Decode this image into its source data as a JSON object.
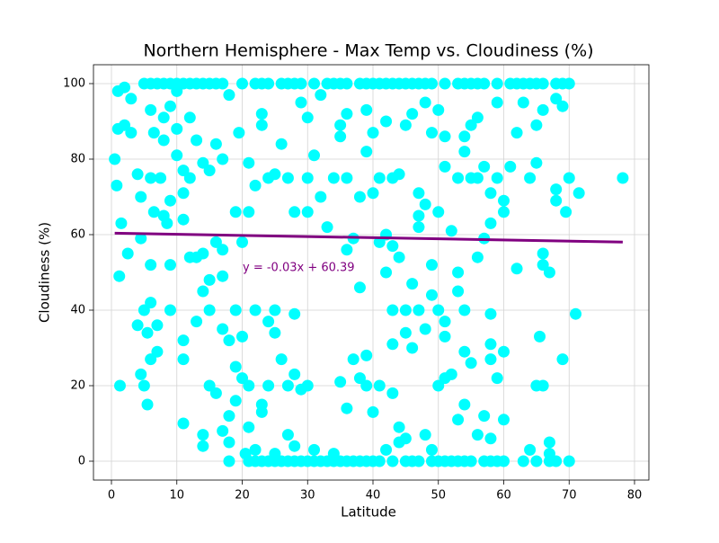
{
  "chart_data": {
    "type": "scatter",
    "title": "Northern Hemisphere - Max Temp vs. Cloudiness (%)",
    "xlabel": "Latitude",
    "ylabel": "Cloudiness (%)",
    "color": "#00ffff",
    "grid": true,
    "xlim": [
      -2.75,
      82.2
    ],
    "ylim": [
      -5,
      105
    ],
    "xticks": [
      0,
      10,
      20,
      30,
      40,
      50,
      60,
      70,
      80
    ],
    "yticks": [
      0,
      20,
      40,
      60,
      80,
      100
    ],
    "x": [
      5,
      6,
      7,
      8,
      9,
      10,
      11,
      12,
      13,
      14,
      15,
      16,
      17,
      20,
      22,
      23,
      24,
      26,
      27,
      28,
      29,
      31,
      33,
      34,
      35,
      36,
      38,
      39,
      40,
      41,
      42,
      43,
      44,
      45,
      46,
      47,
      48,
      49,
      51,
      53,
      54,
      55,
      56,
      57,
      59,
      61,
      62,
      63,
      64,
      65,
      66,
      68,
      69,
      70,
      21,
      22,
      23,
      24,
      25,
      26,
      27,
      28,
      29,
      30,
      31,
      32,
      33,
      34,
      35,
      36,
      37,
      38,
      39,
      40,
      41,
      43,
      45,
      46,
      47,
      49,
      50,
      51,
      52,
      53,
      54,
      55,
      57,
      58,
      59,
      60,
      63,
      65,
      67,
      68,
      70,
      0.5,
      0.8,
      1,
      1,
      1.2,
      1.5,
      1.3,
      2,
      2,
      2.5,
      3,
      3,
      4,
      4,
      4.5,
      4.5,
      4.5,
      5,
      5,
      5.5,
      5.5,
      6,
      6,
      6,
      6,
      6,
      6.5,
      6.5,
      7,
      7,
      7.5,
      8,
      8,
      8,
      8.5,
      9,
      9,
      9,
      9,
      10,
      10,
      10,
      11,
      11,
      11,
      11,
      11,
      11,
      12,
      12,
      12,
      13,
      13,
      13,
      14,
      14,
      14,
      14,
      14,
      15,
      15,
      15,
      15,
      16,
      16,
      16,
      17,
      17,
      17,
      17,
      17,
      18,
      18,
      18,
      18,
      18,
      19,
      19,
      19,
      19,
      19.5,
      20,
      20,
      20,
      20.5,
      21,
      21,
      21,
      21,
      22,
      22,
      22,
      23,
      23,
      23,
      23,
      24,
      24,
      24,
      25,
      25,
      25,
      25,
      26,
      26,
      27,
      27,
      27,
      28,
      28,
      28,
      28,
      29,
      29,
      30,
      30,
      30,
      30,
      31,
      31,
      32,
      32,
      33,
      34,
      34,
      35,
      35,
      35,
      36,
      36,
      36,
      36,
      37,
      37,
      38,
      38,
      38,
      39,
      39,
      39,
      39,
      40,
      40,
      40,
      41,
      41,
      41,
      42,
      42,
      42,
      42,
      43,
      43,
      43,
      43,
      43,
      44,
      44,
      44,
      44,
      45,
      45,
      45,
      45,
      46,
      46,
      46,
      47,
      47,
      47,
      47,
      48,
      48,
      48,
      48,
      49,
      49,
      49,
      49,
      50,
      50,
      50,
      50,
      51,
      51,
      51,
      51,
      51,
      52,
      52,
      53,
      53,
      53,
      53,
      54,
      54,
      54,
      54,
      54,
      55,
      55,
      55,
      56,
      56,
      56,
      56,
      57,
      57,
      57,
      58,
      58,
      58,
      58,
      58,
      58,
      59,
      59,
      59,
      60,
      60,
      60,
      60,
      61,
      62,
      62,
      63,
      64,
      64,
      65,
      65,
      65,
      65.5,
      66,
      66,
      66,
      66,
      67,
      67,
      67,
      68,
      68,
      68,
      69,
      69,
      69.5,
      70,
      71,
      71.5,
      78.2
    ],
    "y": [
      100,
      100,
      100,
      100,
      100,
      100,
      100,
      100,
      100,
      100,
      100,
      100,
      100,
      100,
      100,
      100,
      100,
      100,
      100,
      100,
      100,
      100,
      100,
      100,
      100,
      100,
      100,
      100,
      100,
      100,
      100,
      100,
      100,
      100,
      100,
      100,
      100,
      100,
      100,
      100,
      100,
      100,
      100,
      100,
      100,
      100,
      100,
      100,
      100,
      100,
      100,
      100,
      100,
      100,
      0,
      0,
      0,
      0,
      0,
      0,
      0,
      0,
      0,
      0,
      0,
      0,
      0,
      0,
      0,
      0,
      0,
      0,
      0,
      0,
      0,
      0,
      0,
      0,
      0,
      0,
      0,
      0,
      0,
      0,
      0,
      0,
      0,
      0,
      0,
      0,
      0,
      0,
      0,
      0,
      0,
      80,
      73,
      98,
      88,
      49,
      63,
      20,
      99,
      89,
      55,
      96,
      87,
      76,
      36,
      59,
      23,
      70,
      40,
      20,
      15,
      34,
      42,
      52,
      27,
      75,
      93,
      87,
      66,
      36,
      29,
      75,
      85,
      91,
      65,
      63,
      69,
      52,
      40,
      94,
      88,
      81,
      98,
      77,
      71,
      64,
      32,
      27,
      10,
      75,
      54,
      91,
      54,
      85,
      37,
      79,
      55,
      7,
      4,
      45,
      77,
      48,
      40,
      20,
      84,
      58,
      18,
      80,
      56,
      35,
      8,
      49,
      97,
      32,
      12,
      5,
      0,
      66,
      40,
      25,
      16,
      87,
      58,
      33,
      22,
      2,
      79,
      66,
      20,
      9,
      73,
      40,
      3,
      92,
      89,
      15,
      13,
      75,
      37,
      20,
      76,
      40,
      34,
      2,
      84,
      27,
      75,
      20,
      7,
      66,
      39,
      23,
      4,
      95,
      19,
      91,
      75,
      66,
      20,
      81,
      3,
      97,
      70,
      62,
      75,
      2,
      89,
      86,
      21,
      92,
      56,
      14,
      75,
      59,
      27,
      46,
      70,
      22,
      93,
      82,
      28,
      20,
      87,
      71,
      13,
      75,
      58,
      20,
      90,
      60,
      50,
      3,
      75,
      57,
      40,
      18,
      31,
      76,
      54,
      9,
      5,
      89,
      40,
      34,
      6,
      92,
      47,
      30,
      71,
      65,
      62,
      40,
      95,
      68,
      35,
      7,
      87,
      52,
      44,
      3,
      93,
      66,
      40,
      20,
      86,
      78,
      37,
      33,
      22,
      61,
      23,
      75,
      50,
      45,
      11,
      86,
      82,
      40,
      29,
      15,
      89,
      75,
      26,
      91,
      75,
      54,
      7,
      78,
      59,
      12,
      71,
      63,
      39,
      31,
      27,
      6,
      95,
      75,
      22,
      69,
      66,
      29,
      11,
      78,
      51,
      87,
      95,
      3,
      75,
      79,
      89,
      20,
      33,
      55,
      52,
      20,
      93,
      5,
      2,
      50,
      72,
      69,
      96,
      27,
      94,
      66,
      75,
      39,
      71,
      75
    ],
    "regression": {
      "x": [
        0.5,
        78.2
      ],
      "y": [
        60.38,
        58.04
      ],
      "color": "#800080",
      "label": "y = -0.03x + 60.39"
    }
  }
}
